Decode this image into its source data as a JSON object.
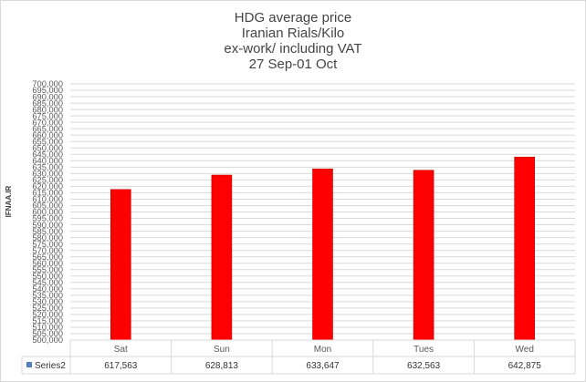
{
  "chart_data": {
    "type": "bar",
    "title_lines": [
      "HDG average price",
      "Iranian Rials/Kilo",
      "ex-work/ including VAT",
      "27 Sep-01 Oct"
    ],
    "ylabel": "IFNAA.IR",
    "categories": [
      "Sat",
      "Sun",
      "Mon",
      "Tues",
      "Wed"
    ],
    "series": [
      {
        "name": "Series2",
        "values": [
          617563,
          628813,
          633647,
          632563,
          642875
        ]
      }
    ],
    "value_labels": [
      "617,563",
      "628,813",
      "633,647",
      "632,563",
      "642,875"
    ],
    "ylim": [
      500000,
      700000
    ],
    "ytick_step": 5000,
    "grid": true,
    "legend": "data-table-left",
    "bar_color": "#ff0000",
    "bar_edge_color": "#c00000",
    "grid_color": "#d9d9d9"
  }
}
